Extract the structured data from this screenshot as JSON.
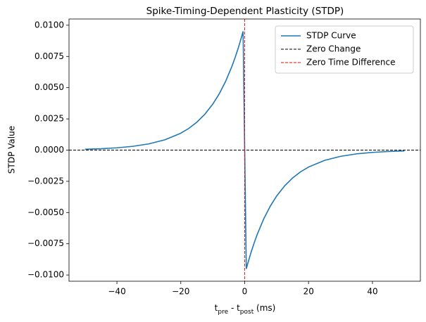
{
  "chart_data": {
    "type": "line",
    "title": "Spike-Timing-Dependent Plasticity (STDP)",
    "x_label": [
      "t",
      "pre",
      " - t",
      "post",
      " (ms)"
    ],
    "y_label": "STDP Value",
    "x": [
      -50,
      -45,
      -40,
      -35,
      -30,
      -25,
      -20,
      -17.5,
      -15,
      -12.5,
      -10,
      -8,
      -6,
      -4,
      -3,
      -2,
      -1,
      -0.5,
      0.5,
      1,
      2,
      3,
      4,
      6,
      8,
      10,
      12.5,
      15,
      17.5,
      20,
      25,
      30,
      35,
      40,
      45,
      50
    ],
    "series": [
      {
        "name": "STDP Curve",
        "color": "#1f77b4",
        "values": [
          6.74e-05,
          0.000111,
          0.000183,
          0.000302,
          0.000498,
          0.000821,
          0.001353,
          0.001738,
          0.002231,
          0.002865,
          0.003679,
          0.004493,
          0.005488,
          0.006703,
          0.007408,
          0.008187,
          0.009048,
          0.009512,
          -0.009512,
          -0.009048,
          -0.008187,
          -0.007408,
          -0.006703,
          -0.005488,
          -0.004493,
          -0.003679,
          -0.002865,
          -0.002231,
          -0.001738,
          -0.001353,
          -0.000821,
          -0.000498,
          -0.000302,
          -0.000183,
          -0.000111,
          -6.74e-05
        ]
      }
    ],
    "hlines": [
      {
        "name": "Zero Change",
        "value": 0,
        "color": "#000000"
      }
    ],
    "vlines": [
      {
        "name": "Zero Time Difference",
        "value": 0,
        "color": "#ff0000"
      }
    ],
    "xlim": [
      -55,
      55
    ],
    "ylim": [
      -0.0105,
      0.0105
    ],
    "xticks": [
      {
        "value": -40,
        "label": "−40"
      },
      {
        "value": -20,
        "label": "−20"
      },
      0,
      20,
      40
    ],
    "yticks": [
      {
        "value": -0.01,
        "label": "−0.0100"
      },
      {
        "value": -0.0075,
        "label": "−0.0075"
      },
      {
        "value": -0.005,
        "label": "−0.0050"
      },
      {
        "value": -0.0025,
        "label": "−0.0025"
      },
      {
        "value": 0,
        "label": "0.0000"
      },
      {
        "value": 0.0025,
        "label": "0.0025"
      },
      {
        "value": 0.005,
        "label": "0.0050"
      },
      {
        "value": 0.0075,
        "label": "0.0075"
      },
      {
        "value": 0.01,
        "label": "0.0100"
      }
    ],
    "legend": "upper right"
  }
}
